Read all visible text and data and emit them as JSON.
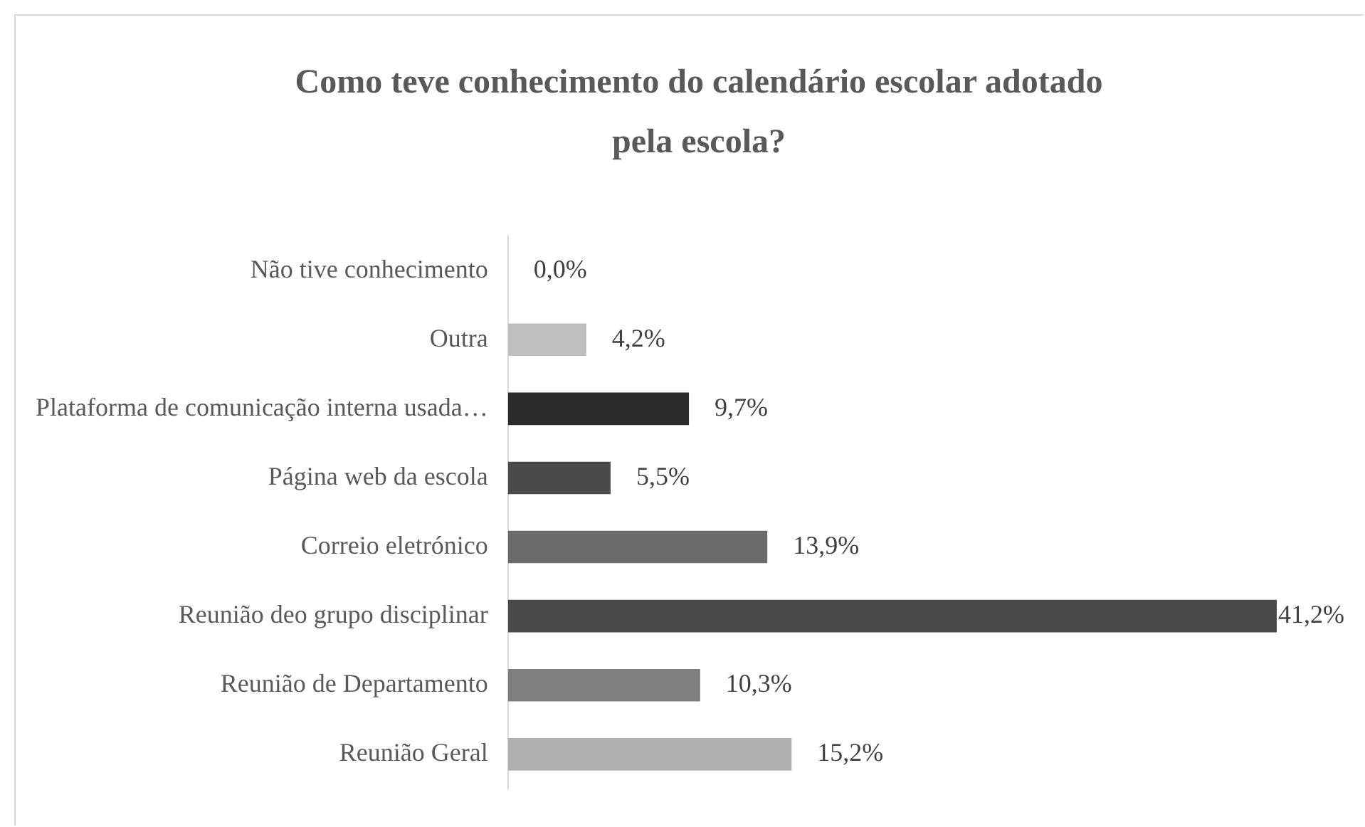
{
  "chart_data": {
    "type": "bar",
    "orientation": "horizontal",
    "title": "Como teve conhecimento do calendário escolar adotado pela escola?",
    "categories": [
      "Não tive conhecimento",
      "Outra",
      "Plataforma de comunicação interna usada…",
      "Página web da escola",
      "Correio eletrónico",
      "Reunião deo grupo disciplinar",
      "Reunião de Departamento",
      "Reunião Geral"
    ],
    "values": [
      0,
      4.2,
      9.7,
      5.5,
      13.9,
      41.2,
      10.3,
      15.2
    ],
    "value_labels": [
      "0,0%",
      "4,2%",
      "9,7%",
      "5,5%",
      "13,9%",
      "41,2%",
      "10,3%",
      "15,2%"
    ],
    "colors": [
      "#a5a5a5",
      "#bfbfbf",
      "#2b2b2b",
      "#4a4a4a",
      "#6b6b6b",
      "#4a4a4a",
      "#7f7f7f",
      "#b0b0b0"
    ],
    "tick_labels": "y",
    "grid": false,
    "legend": false
  }
}
